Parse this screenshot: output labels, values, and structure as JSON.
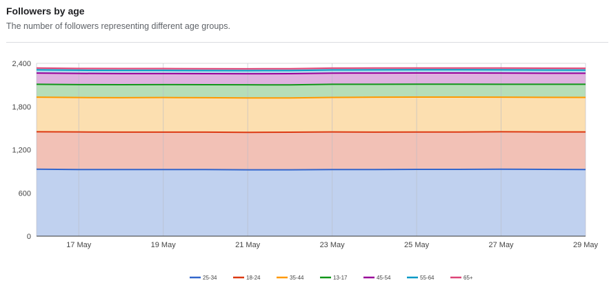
{
  "header": {
    "title": "Followers by age",
    "subtitle": "The number of followers representing different age groups."
  },
  "chart_data": {
    "type": "area",
    "stacked": true,
    "ylim": [
      0,
      2400
    ],
    "y_ticks": [
      0,
      600,
      1200,
      1800,
      2400
    ],
    "x_tick_labels": [
      "17 May",
      "19 May",
      "21 May",
      "23 May",
      "25 May",
      "27 May",
      "29 May"
    ],
    "x": [
      "16 May",
      "17 May",
      "18 May",
      "19 May",
      "20 May",
      "21 May",
      "22 May",
      "23 May",
      "24 May",
      "25 May",
      "26 May",
      "27 May",
      "28 May",
      "29 May"
    ],
    "grid": true,
    "legend_position": "bottom",
    "series": [
      {
        "name": "25-34",
        "color": "#3366cc",
        "fill": "#c0d1ef",
        "values": [
          930,
          925,
          925,
          925,
          925,
          922,
          922,
          925,
          925,
          928,
          928,
          930,
          928,
          925
        ]
      },
      {
        "name": "18-24",
        "color": "#dc3912",
        "fill": "#f2c1b6",
        "values": [
          520,
          522,
          520,
          520,
          520,
          520,
          522,
          522,
          520,
          518,
          518,
          520,
          520,
          522
        ]
      },
      {
        "name": "35-44",
        "color": "#ff9900",
        "fill": "#fcdfb0",
        "values": [
          480,
          478,
          478,
          480,
          478,
          478,
          475,
          480,
          485,
          485,
          485,
          480,
          480,
          480
        ]
      },
      {
        "name": "13-17",
        "color": "#109618",
        "fill": "#b6deb8",
        "values": [
          180,
          180,
          180,
          180,
          180,
          182,
          182,
          182,
          180,
          180,
          180,
          180,
          182,
          182
        ]
      },
      {
        "name": "45-54",
        "color": "#990099",
        "fill": "#dfb1df",
        "values": [
          155,
          155,
          155,
          153,
          153,
          153,
          155,
          155,
          155,
          155,
          155,
          155,
          153,
          153
        ]
      },
      {
        "name": "55-64",
        "color": "#0099c6",
        "fill": "#b0dbe9",
        "values": [
          45,
          45,
          45,
          45,
          45,
          45,
          45,
          45,
          45,
          45,
          45,
          45,
          45,
          45
        ]
      },
      {
        "name": "65+",
        "color": "#dd4477",
        "fill": "#f2c0d0",
        "values": [
          25,
          25,
          25,
          25,
          25,
          25,
          25,
          25,
          25,
          25,
          25,
          25,
          25,
          25
        ]
      }
    ]
  }
}
